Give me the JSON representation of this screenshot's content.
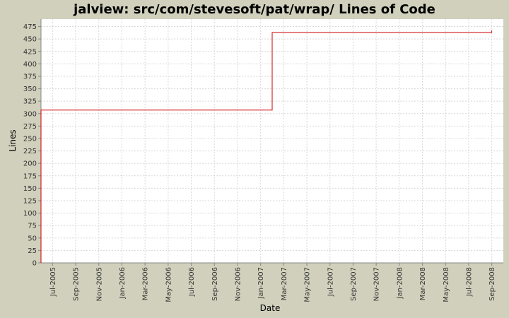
{
  "chart_data": {
    "type": "line",
    "title": "jalview: src/com/stevesoft/pat/wrap/ Lines of Code",
    "x_label": "Date",
    "y_label": "Lines",
    "series": [
      {
        "name": "Lines",
        "color": "#cc0000",
        "x": [
          "2005-06",
          "2005-06",
          "2007-02",
          "2007-02",
          "2008-09",
          "2008-09"
        ],
        "values": [
          0,
          307,
          307,
          463,
          463,
          467
        ]
      }
    ],
    "step": true,
    "xlim": [
      "2005-06",
      "2008-10"
    ],
    "xticks": [
      {
        "value": "2005-07",
        "label": "Jul-2005"
      },
      {
        "value": "2005-09",
        "label": "Sep-2005"
      },
      {
        "value": "2005-11",
        "label": "Nov-2005"
      },
      {
        "value": "2006-01",
        "label": "Jan-2006"
      },
      {
        "value": "2006-03",
        "label": "Mar-2006"
      },
      {
        "value": "2006-05",
        "label": "May-2006"
      },
      {
        "value": "2006-07",
        "label": "Jul-2006"
      },
      {
        "value": "2006-09",
        "label": "Sep-2006"
      },
      {
        "value": "2006-11",
        "label": "Nov-2006"
      },
      {
        "value": "2007-01",
        "label": "Jan-2007"
      },
      {
        "value": "2007-03",
        "label": "Mar-2007"
      },
      {
        "value": "2007-05",
        "label": "May-2007"
      },
      {
        "value": "2007-07",
        "label": "Jul-2007"
      },
      {
        "value": "2007-09",
        "label": "Sep-2007"
      },
      {
        "value": "2007-11",
        "label": "Nov-2007"
      },
      {
        "value": "2008-01",
        "label": "Jan-2008"
      },
      {
        "value": "2008-03",
        "label": "Mar-2008"
      },
      {
        "value": "2008-05",
        "label": "May-2008"
      },
      {
        "value": "2008-07",
        "label": "Jul-2008"
      },
      {
        "value": "2008-09",
        "label": "Sep-2008"
      }
    ],
    "ylim": [
      0,
      490
    ],
    "yticks": [
      0,
      25,
      50,
      75,
      100,
      125,
      150,
      175,
      200,
      225,
      250,
      275,
      300,
      325,
      350,
      375,
      400,
      425,
      450,
      475
    ],
    "grid": true
  }
}
